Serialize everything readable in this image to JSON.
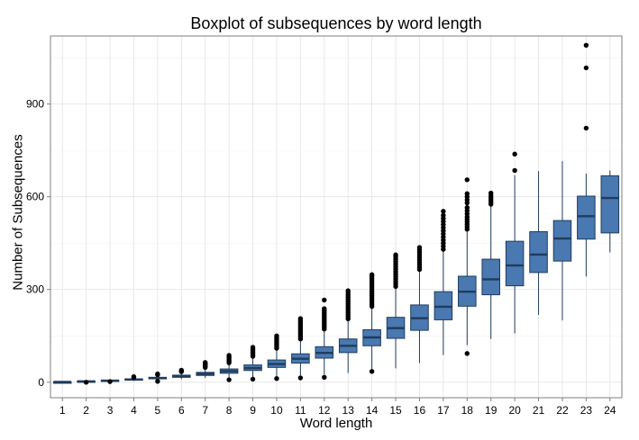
{
  "chart_data": {
    "type": "boxplot",
    "title": "Boxplot of subsequences by word length",
    "xlabel": "Word length",
    "ylabel": "Number of Subsequences",
    "categories": [
      "1",
      "2",
      "3",
      "4",
      "5",
      "6",
      "7",
      "8",
      "9",
      "10",
      "11",
      "12",
      "13",
      "14",
      "15",
      "16",
      "17",
      "18",
      "19",
      "20",
      "21",
      "22",
      "23",
      "24"
    ],
    "ylim": [
      -50,
      1120
    ],
    "yticks": [
      0,
      300,
      600,
      900
    ],
    "grid": true,
    "fill_color": "#4a78b0",
    "stroke_color": "#1f3c5c",
    "boxes": [
      {
        "min": 0,
        "q1": 0,
        "median": 1,
        "q3": 1,
        "max": 2,
        "outliers": []
      },
      {
        "min": 0,
        "q1": 2,
        "median": 3,
        "q3": 4,
        "max": 6,
        "outliers": [
          0
        ]
      },
      {
        "min": 1,
        "q1": 4,
        "median": 5,
        "q3": 7,
        "max": 10,
        "outliers": [
          2
        ]
      },
      {
        "min": 4,
        "q1": 7,
        "median": 9,
        "q3": 11,
        "max": 15,
        "outliers": [
          16,
          18
        ]
      },
      {
        "min": 7,
        "q1": 11,
        "median": 13,
        "q3": 16,
        "max": 22,
        "outliers": [
          3,
          24,
          27
        ]
      },
      {
        "min": 10,
        "q1": 16,
        "median": 19,
        "q3": 23,
        "max": 32,
        "outliers": [
          34,
          37,
          39
        ]
      },
      {
        "min": 14,
        "q1": 22,
        "median": 27,
        "q3": 32,
        "max": 45,
        "outliers": [
          48,
          52,
          55,
          58,
          61,
          64
        ]
      },
      {
        "min": 16,
        "q1": 29,
        "median": 36,
        "q3": 43,
        "max": 60,
        "outliers": [
          8,
          63,
          68,
          72,
          77,
          82,
          87
        ]
      },
      {
        "min": 18,
        "q1": 38,
        "median": 46,
        "q3": 56,
        "max": 80,
        "outliers": [
          10,
          84,
          88,
          93,
          98,
          103,
          108,
          113
        ]
      },
      {
        "min": 20,
        "q1": 48,
        "median": 59,
        "q3": 72,
        "max": 105,
        "outliers": [
          12,
          110,
          115,
          120,
          125,
          130,
          135,
          140,
          145,
          150
        ]
      },
      {
        "min": 22,
        "q1": 62,
        "median": 76,
        "q3": 92,
        "max": 135,
        "outliers": [
          14,
          140,
          146,
          152,
          158,
          164,
          170,
          176,
          182,
          188,
          194,
          200,
          206
        ]
      },
      {
        "min": 25,
        "q1": 78,
        "median": 95,
        "q3": 115,
        "max": 168,
        "outliers": [
          16,
          172,
          178,
          184,
          190,
          196,
          202,
          208,
          214,
          220,
          226,
          232,
          238,
          266
        ]
      },
      {
        "min": 30,
        "q1": 96,
        "median": 118,
        "q3": 140,
        "max": 200,
        "outliers": [
          205,
          212,
          219,
          226,
          233,
          240,
          247,
          254,
          261,
          268,
          275,
          282,
          289,
          296
        ]
      },
      {
        "min": 35,
        "q1": 118,
        "median": 145,
        "q3": 170,
        "max": 240,
        "outliers": [
          35,
          245,
          252,
          259,
          266,
          273,
          280,
          287,
          294,
          301,
          308,
          315,
          322,
          329,
          336,
          343,
          348
        ]
      },
      {
        "min": 45,
        "q1": 142,
        "median": 175,
        "q3": 210,
        "max": 305,
        "outliers": [
          310,
          318,
          326,
          334,
          342,
          350,
          358,
          366,
          374,
          382,
          390,
          398,
          406,
          412
        ]
      },
      {
        "min": 62,
        "q1": 168,
        "median": 207,
        "q3": 250,
        "max": 360,
        "outliers": [
          365,
          372,
          380,
          388,
          396,
          404,
          412,
          420,
          428,
          436
        ]
      },
      {
        "min": 88,
        "q1": 202,
        "median": 244,
        "q3": 293,
        "max": 425,
        "outliers": [
          430,
          440,
          450,
          460,
          470,
          480,
          490,
          500,
          510,
          520,
          530,
          540,
          553
        ]
      },
      {
        "min": 120,
        "q1": 246,
        "median": 293,
        "q3": 343,
        "max": 490,
        "outliers": [
          93,
          495,
          503,
          511,
          519,
          527,
          535,
          545,
          555,
          565,
          580,
          590,
          600,
          610,
          655
        ]
      },
      {
        "min": 140,
        "q1": 283,
        "median": 333,
        "q3": 398,
        "max": 570,
        "outliers": [
          576,
          583,
          590,
          597,
          604,
          612
        ]
      },
      {
        "min": 158,
        "q1": 312,
        "median": 378,
        "q3": 456,
        "max": 670,
        "outliers": [
          685,
          738
        ]
      },
      {
        "min": 218,
        "q1": 355,
        "median": 413,
        "q3": 487,
        "max": 683,
        "outliers": []
      },
      {
        "min": 200,
        "q1": 392,
        "median": 465,
        "q3": 523,
        "max": 715,
        "outliers": []
      },
      {
        "min": 342,
        "q1": 463,
        "median": 537,
        "q3": 602,
        "max": 675,
        "outliers": [
          822,
          1017,
          1090
        ]
      },
      {
        "min": 420,
        "q1": 483,
        "median": 596,
        "q3": 668,
        "max": 685,
        "outliers": []
      }
    ]
  }
}
